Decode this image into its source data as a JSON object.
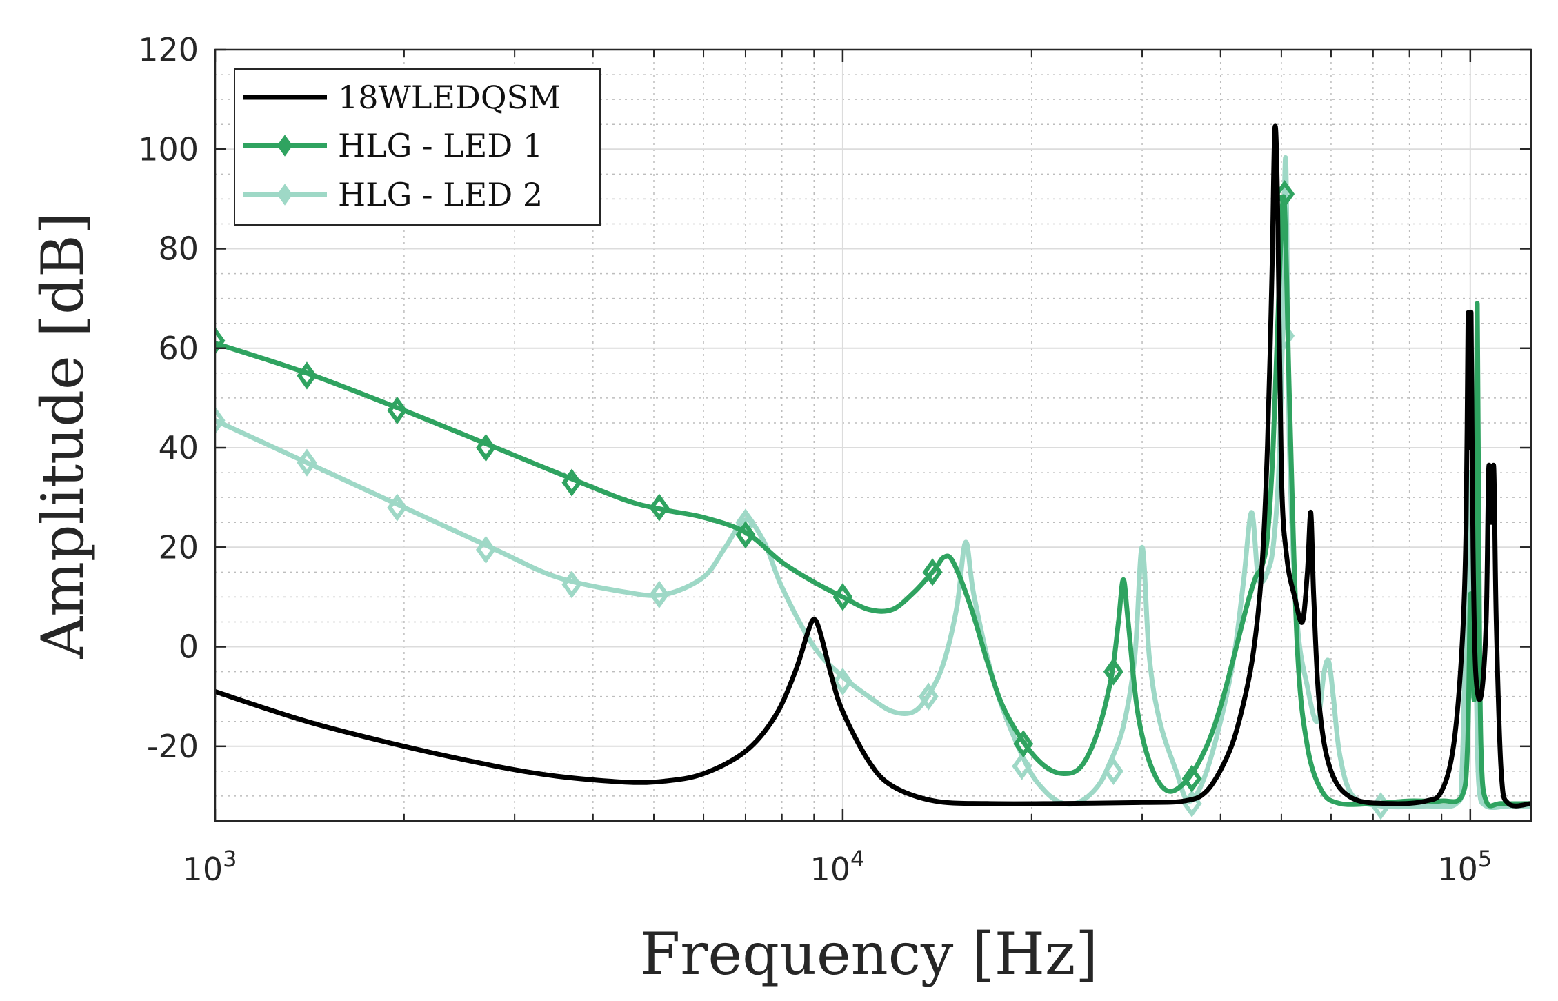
{
  "chart_data": {
    "type": "line",
    "xscale": "log",
    "xlabel": "Frequency [Hz]",
    "ylabel": "Amplitude [dB]",
    "xlim": [
      1000,
      125000
    ],
    "ylim": [
      -35,
      120
    ],
    "grid": true,
    "minor_grid": true,
    "legend_position": "top-left",
    "yticks": [
      -20,
      0,
      20,
      40,
      60,
      80,
      100,
      120
    ],
    "ytick_labels": [
      "-20",
      "0",
      "20",
      "40",
      "60",
      "80",
      "100",
      "120"
    ],
    "xticks": [
      {
        "value": 1000,
        "base": "10",
        "exp": "3"
      },
      {
        "value": 10000,
        "base": "10",
        "exp": "4"
      },
      {
        "value": 100000,
        "base": "10",
        "exp": "5"
      }
    ],
    "series": [
      {
        "name": "18WLEDQSM",
        "color": "#000000",
        "marker": "none",
        "points": [
          [
            1000,
            -9
          ],
          [
            1400,
            -15
          ],
          [
            2000,
            -20
          ],
          [
            2800,
            -24
          ],
          [
            3500,
            -26
          ],
          [
            4500,
            -27.2
          ],
          [
            5200,
            -27
          ],
          [
            6000,
            -25.5
          ],
          [
            7000,
            -21
          ],
          [
            7800,
            -14
          ],
          [
            8400,
            -5
          ],
          [
            8800,
            3
          ],
          [
            9000,
            5.5
          ],
          [
            9200,
            3
          ],
          [
            9600,
            -6
          ],
          [
            10000,
            -13
          ],
          [
            11000,
            -23
          ],
          [
            12000,
            -28
          ],
          [
            14000,
            -31
          ],
          [
            17000,
            -31.5
          ],
          [
            22000,
            -31.5
          ],
          [
            30000,
            -31.3
          ],
          [
            35000,
            -31
          ],
          [
            38000,
            -29
          ],
          [
            41000,
            -22
          ],
          [
            43000,
            -14
          ],
          [
            45000,
            -2
          ],
          [
            46500,
            15
          ],
          [
            47500,
            40
          ],
          [
            48300,
            75
          ],
          [
            48800,
            104
          ],
          [
            49300,
            90
          ],
          [
            50000,
            35
          ],
          [
            51000,
            18
          ],
          [
            52500,
            10
          ],
          [
            54000,
            5
          ],
          [
            55000,
            15
          ],
          [
            55700,
            27
          ],
          [
            56300,
            10
          ],
          [
            57500,
            -12
          ],
          [
            60000,
            -25
          ],
          [
            65000,
            -30.5
          ],
          [
            75000,
            -31.5
          ],
          [
            85000,
            -31
          ],
          [
            90000,
            -29
          ],
          [
            94000,
            -20
          ],
          [
            97000,
            0
          ],
          [
            98500,
            25
          ],
          [
            99200,
            67
          ],
          [
            99800,
            40
          ],
          [
            100300,
            67
          ],
          [
            101000,
            20
          ],
          [
            102000,
            -5
          ],
          [
            104000,
            -10
          ],
          [
            106000,
            5
          ],
          [
            107000,
            36
          ],
          [
            108000,
            25
          ],
          [
            109000,
            36
          ],
          [
            110000,
            5
          ],
          [
            112000,
            -25
          ],
          [
            115000,
            -31.5
          ],
          [
            125000,
            -31.5
          ]
        ]
      },
      {
        "name": "HLG - LED 1",
        "color": "#2fa360",
        "marker": "diamond",
        "points": [
          [
            1000,
            61
          ],
          [
            1400,
            55
          ],
          [
            2000,
            47.5
          ],
          [
            2800,
            40
          ],
          [
            3500,
            35
          ],
          [
            4500,
            29.5
          ],
          [
            5200,
            27.5
          ],
          [
            6000,
            26
          ],
          [
            7000,
            23
          ],
          [
            8000,
            17
          ],
          [
            9000,
            13
          ],
          [
            10000,
            10
          ],
          [
            11000,
            7.5
          ],
          [
            12000,
            7.5
          ],
          [
            13000,
            11
          ],
          [
            14000,
            15.5
          ],
          [
            14500,
            18
          ],
          [
            15000,
            17
          ],
          [
            16000,
            8
          ],
          [
            17000,
            -3
          ],
          [
            18000,
            -12
          ],
          [
            19500,
            -19.5
          ],
          [
            21000,
            -24
          ],
          [
            22500,
            -25.5
          ],
          [
            24000,
            -24
          ],
          [
            25500,
            -17
          ],
          [
            26800,
            -6
          ],
          [
            27500,
            5
          ],
          [
            28000,
            13.5
          ],
          [
            28500,
            5
          ],
          [
            29500,
            -13
          ],
          [
            31000,
            -24
          ],
          [
            33000,
            -29
          ],
          [
            35500,
            -26.5
          ],
          [
            38000,
            -20
          ],
          [
            40000,
            -12
          ],
          [
            42000,
            -2
          ],
          [
            44000,
            8
          ],
          [
            45500,
            14
          ],
          [
            46500,
            16
          ],
          [
            47500,
            22
          ],
          [
            48500,
            40
          ],
          [
            49500,
            70
          ],
          [
            50500,
            90
          ],
          [
            51500,
            50
          ],
          [
            53000,
            0
          ],
          [
            55000,
            -20
          ],
          [
            58000,
            -29
          ],
          [
            62000,
            -31.5
          ],
          [
            70000,
            -31.5
          ],
          [
            80000,
            -31
          ],
          [
            90000,
            -31
          ],
          [
            97000,
            -30
          ],
          [
            99000,
            -20
          ],
          [
            100000,
            10
          ],
          [
            100800,
            0
          ],
          [
            101500,
            -10
          ],
          [
            102000,
            20
          ],
          [
            102600,
            69
          ],
          [
            103200,
            20
          ],
          [
            104000,
            -20
          ],
          [
            106000,
            -31
          ],
          [
            112000,
            -31.5
          ],
          [
            125000,
            -31.5
          ]
        ]
      },
      {
        "name": "HLG - LED 2",
        "color": "#9ed8c6",
        "marker": "diamond",
        "points": [
          [
            1000,
            45.5
          ],
          [
            1400,
            37
          ],
          [
            2000,
            28
          ],
          [
            2800,
            19.5
          ],
          [
            3500,
            14
          ],
          [
            4500,
            11
          ],
          [
            5200,
            10.5
          ],
          [
            6000,
            14
          ],
          [
            6500,
            20
          ],
          [
            7000,
            25.5
          ],
          [
            7500,
            21
          ],
          [
            8000,
            12
          ],
          [
            9000,
            0
          ],
          [
            10000,
            -6
          ],
          [
            11000,
            -10
          ],
          [
            12000,
            -13
          ],
          [
            13000,
            -13
          ],
          [
            13800,
            -9
          ],
          [
            14500,
            -3
          ],
          [
            15200,
            8
          ],
          [
            15700,
            21
          ],
          [
            16200,
            10
          ],
          [
            17500,
            -8
          ],
          [
            19500,
            -23
          ],
          [
            21000,
            -29
          ],
          [
            22500,
            -31.5
          ],
          [
            24000,
            -31
          ],
          [
            25500,
            -28
          ],
          [
            26500,
            -24
          ],
          [
            28000,
            -16
          ],
          [
            29200,
            -2
          ],
          [
            30000,
            20
          ],
          [
            30800,
            -2
          ],
          [
            32000,
            -15
          ],
          [
            34000,
            -25
          ],
          [
            35500,
            -31
          ],
          [
            37500,
            -27
          ],
          [
            40000,
            -15
          ],
          [
            42000,
            -2
          ],
          [
            43500,
            13
          ],
          [
            44800,
            27
          ],
          [
            45800,
            15
          ],
          [
            46500,
            13
          ],
          [
            47500,
            15
          ],
          [
            48500,
            20
          ],
          [
            49500,
            35
          ],
          [
            50200,
            62
          ],
          [
            50800,
            98
          ],
          [
            51500,
            40
          ],
          [
            53000,
            5
          ],
          [
            55000,
            -8
          ],
          [
            57000,
            -15
          ],
          [
            58500,
            -5
          ],
          [
            59500,
            -3
          ],
          [
            60500,
            -10
          ],
          [
            62000,
            -22
          ],
          [
            65000,
            -30
          ],
          [
            72000,
            -32
          ],
          [
            85000,
            -32
          ],
          [
            95000,
            -31.5
          ],
          [
            97000,
            -25
          ],
          [
            98500,
            10
          ],
          [
            99500,
            35
          ],
          [
            100300,
            10
          ],
          [
            101000,
            -10
          ],
          [
            101800,
            5
          ],
          [
            102300,
            -10
          ],
          [
            103200,
            -28
          ],
          [
            106000,
            -32
          ],
          [
            115000,
            -32
          ],
          [
            125000,
            -32
          ]
        ]
      }
    ],
    "markers": {
      "HLG - LED 1": [
        [
          1000,
          61.5
        ],
        [
          1400,
          54.5
        ],
        [
          1950,
          47.5
        ],
        [
          2700,
          40
        ],
        [
          3700,
          33
        ],
        [
          5100,
          28
        ],
        [
          7000,
          22.5
        ],
        [
          10000,
          10
        ],
        [
          13900,
          15
        ],
        [
          19400,
          -19.5
        ],
        [
          27000,
          -5
        ],
        [
          36000,
          -26.5
        ],
        [
          50600,
          91
        ]
      ],
      "HLG - LED 2": [
        [
          1000,
          45.5
        ],
        [
          1400,
          37
        ],
        [
          1950,
          28
        ],
        [
          2700,
          19.5
        ],
        [
          3700,
          12.5
        ],
        [
          5100,
          10.5
        ],
        [
          7000,
          25
        ],
        [
          10000,
          -7
        ],
        [
          13700,
          -10
        ],
        [
          19300,
          -24
        ],
        [
          27000,
          -25
        ],
        [
          36000,
          -31.5
        ],
        [
          50600,
          62.5
        ],
        [
          72000,
          -32
        ]
      ]
    }
  }
}
